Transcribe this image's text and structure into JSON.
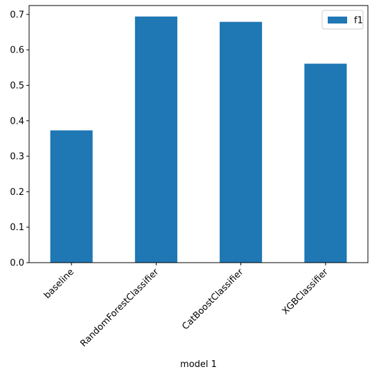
{
  "chart_data": {
    "type": "bar",
    "categories": [
      "baseline",
      "RandomForestClassifier",
      "CatBoostClassifier",
      "XGBClassifier"
    ],
    "series": [
      {
        "name": "f1",
        "values": [
          0.373,
          0.694,
          0.679,
          0.561
        ],
        "color": "#1f77b4"
      }
    ],
    "title": "",
    "xlabel": "model 1",
    "ylabel": "",
    "ylim": [
      0,
      0.725
    ],
    "yticks": [
      0.0,
      0.1,
      0.2,
      0.3,
      0.4,
      0.5,
      0.6,
      0.7
    ],
    "ytick_labels": [
      "0.0",
      "0.1",
      "0.2",
      "0.3",
      "0.4",
      "0.5",
      "0.6",
      "0.7"
    ],
    "xtick_rotation": 45,
    "grid": false,
    "legend": {
      "position": "top-right",
      "entries": [
        "f1"
      ]
    }
  }
}
